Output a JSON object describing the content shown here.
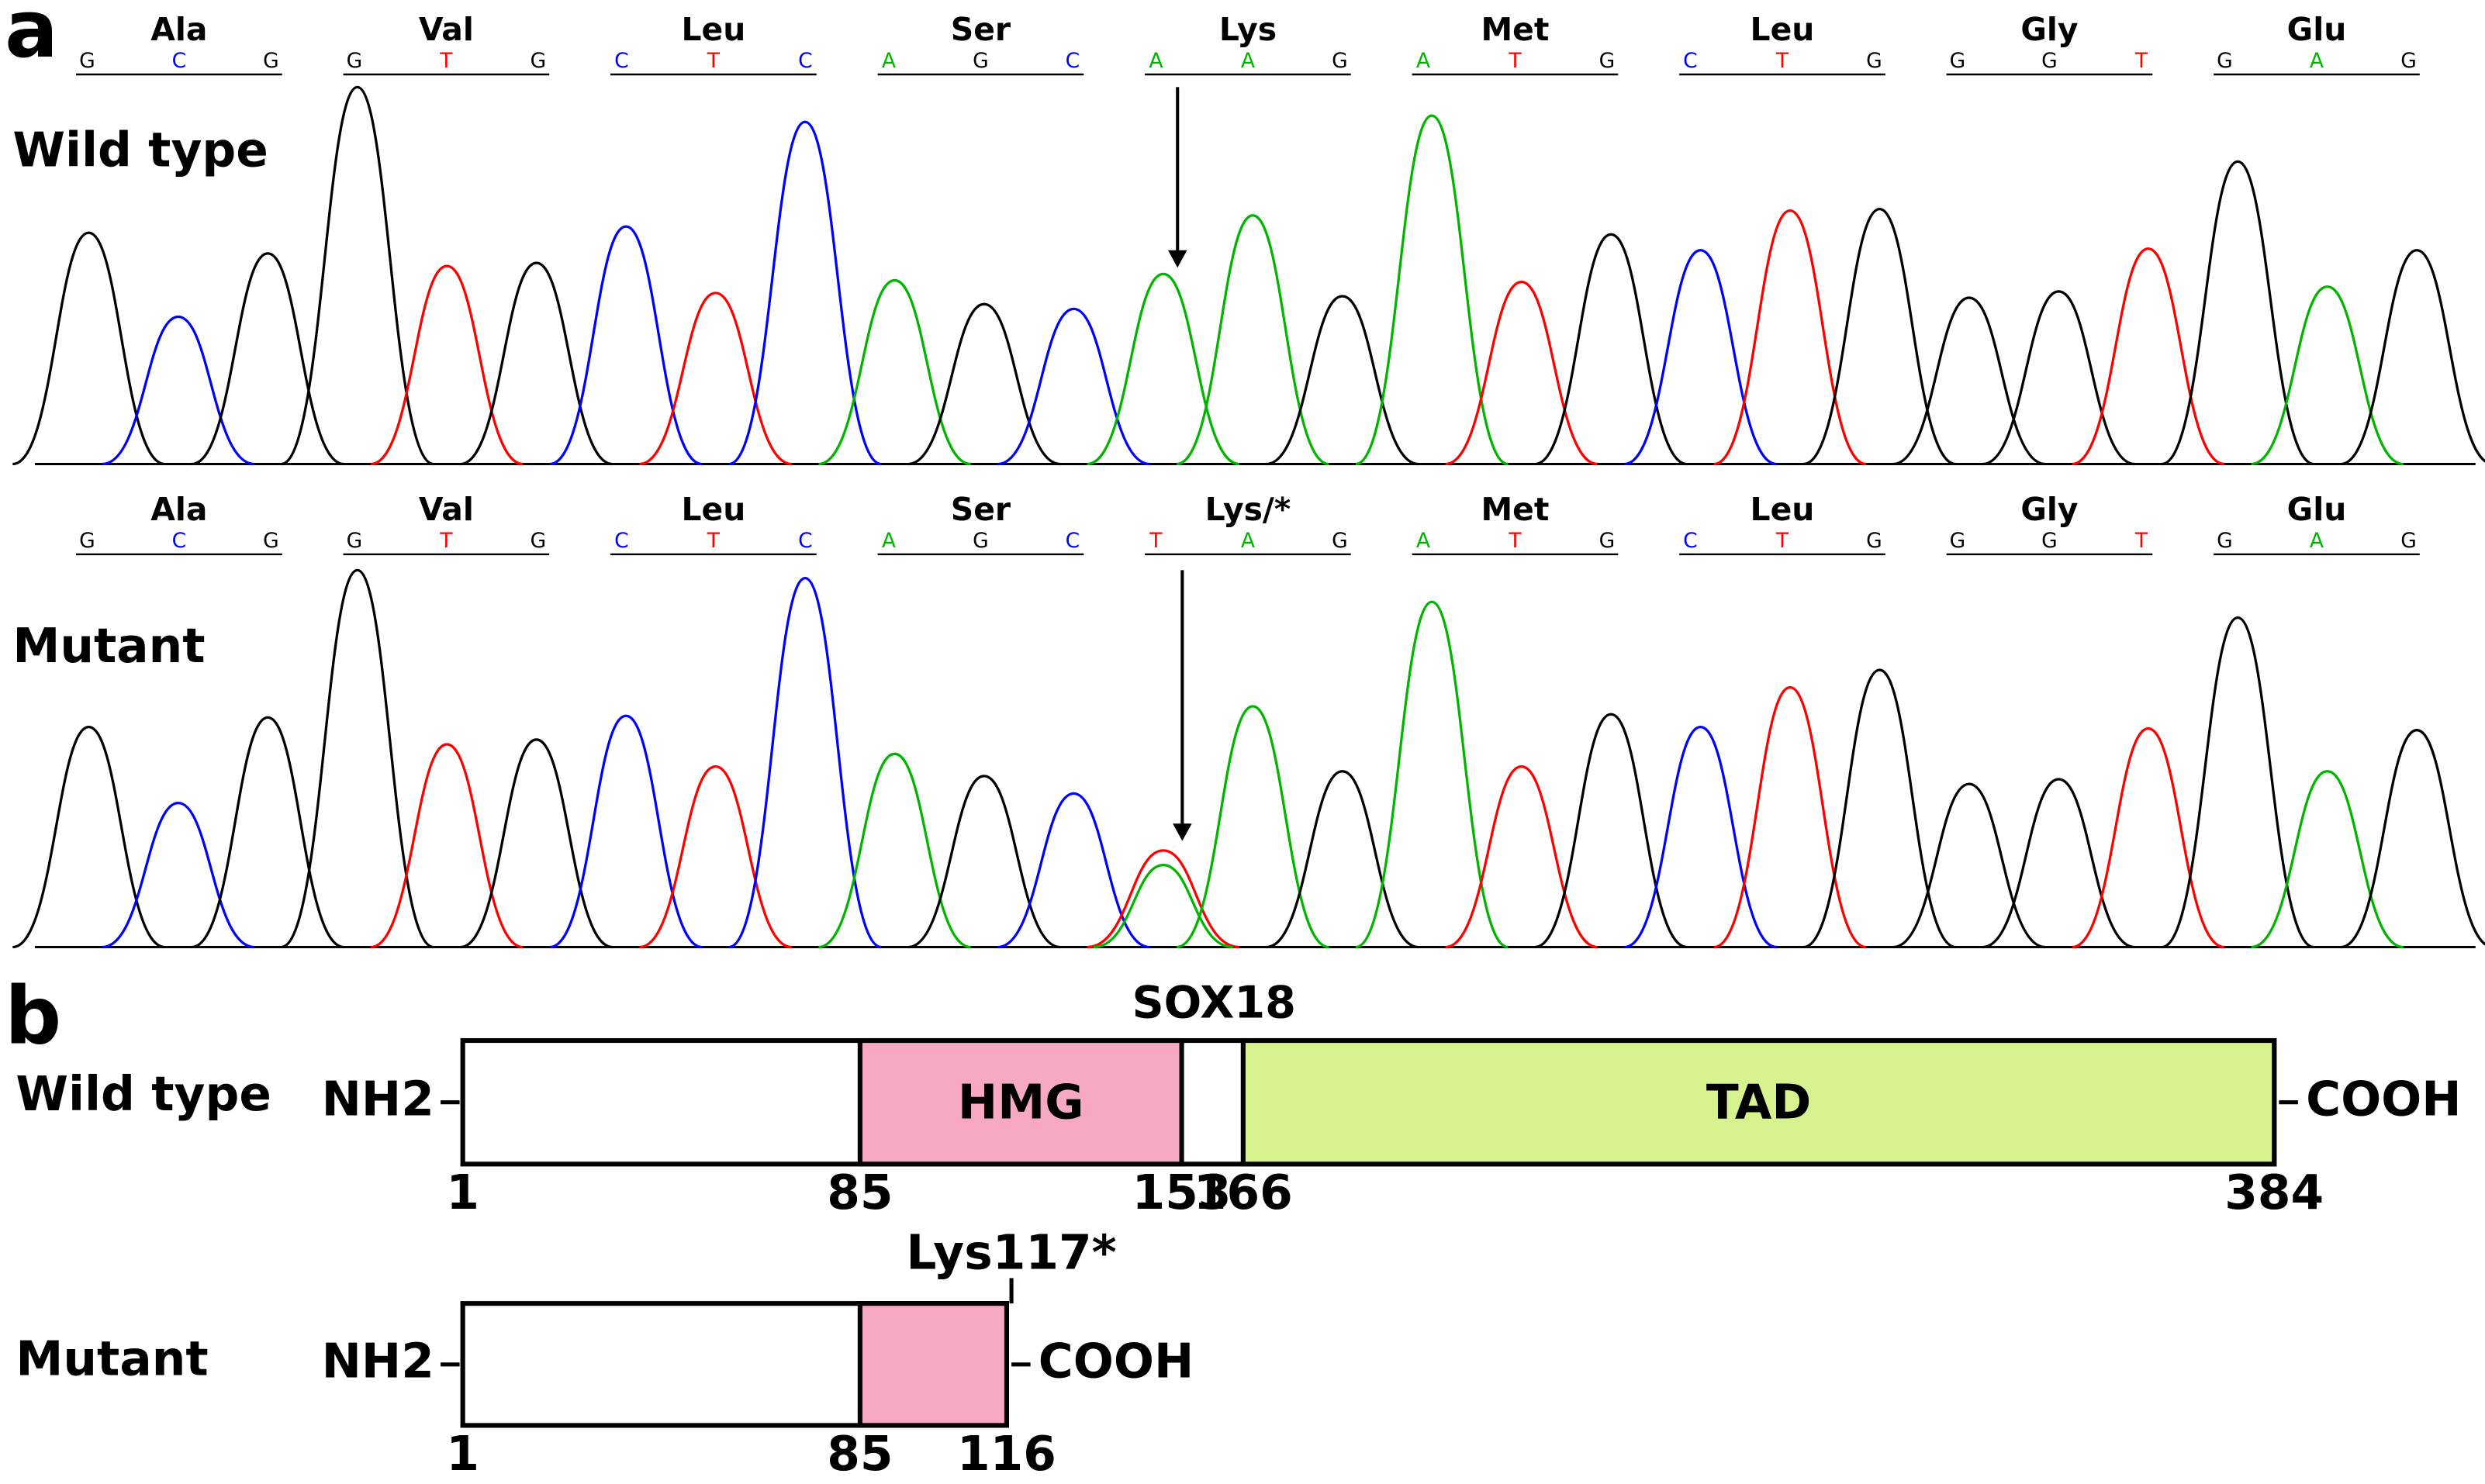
{
  "panel_a": {
    "label": "a",
    "base_colors": {
      "A": "#00b400",
      "C": "#0000ff",
      "G": "#000000",
      "T": "#ff0000"
    },
    "tracks": [
      {
        "label": "Wild type",
        "codons": [
          {
            "amino_acid": "Ala",
            "bases": [
              "G",
              "C",
              "G"
            ]
          },
          {
            "amino_acid": "Val",
            "bases": [
              "G",
              "T",
              "G"
            ]
          },
          {
            "amino_acid": "Leu",
            "bases": [
              "C",
              "T",
              "C"
            ]
          },
          {
            "amino_acid": "Ser",
            "bases": [
              "A",
              "G",
              "C"
            ]
          },
          {
            "amino_acid": "Lys",
            "bases": [
              "A",
              "A",
              "G"
            ]
          },
          {
            "amino_acid": "Met",
            "bases": [
              "A",
              "T",
              "G"
            ]
          },
          {
            "amino_acid": "Leu",
            "bases": [
              "C",
              "T",
              "G"
            ]
          },
          {
            "amino_acid": "Gly",
            "bases": [
              "G",
              "G",
              "T"
            ]
          },
          {
            "amino_acid": "Glu",
            "bases": [
              "G",
              "A",
              "G"
            ]
          }
        ]
      },
      {
        "label": "Mutant",
        "codons": [
          {
            "amino_acid": "Ala",
            "bases": [
              "G",
              "C",
              "G"
            ]
          },
          {
            "amino_acid": "Val",
            "bases": [
              "G",
              "T",
              "G"
            ]
          },
          {
            "amino_acid": "Leu",
            "bases": [
              "C",
              "T",
              "C"
            ]
          },
          {
            "amino_acid": "Ser",
            "bases": [
              "A",
              "G",
              "C"
            ]
          },
          {
            "amino_acid": "Lys/*",
            "bases": [
              "T",
              "A",
              "G"
            ]
          },
          {
            "amino_acid": "Met",
            "bases": [
              "A",
              "T",
              "G"
            ]
          },
          {
            "amino_acid": "Leu",
            "bases": [
              "C",
              "T",
              "G"
            ]
          },
          {
            "amino_acid": "Gly",
            "bases": [
              "G",
              "G",
              "T"
            ]
          },
          {
            "amino_acid": "Glu",
            "bases": [
              "G",
              "A",
              "G"
            ]
          }
        ]
      }
    ]
  },
  "panel_b": {
    "label": "b",
    "protein": "SOX18",
    "constructs": [
      {
        "label": "Wild type",
        "n_term": "NH2",
        "c_term": "COOH",
        "positions": [
          1,
          85,
          153,
          166,
          384
        ],
        "domains": [
          {
            "name": "HMG",
            "start": 85,
            "end": 153,
            "color": "#f7a8c4"
          },
          {
            "name": "TAD",
            "start": 166,
            "end": 384,
            "color": "#d6f38f"
          }
        ]
      },
      {
        "label": "Mutant",
        "n_term": "NH2",
        "c_term": "COOH",
        "positions": [
          1,
          85,
          116
        ],
        "annotation": "Lys117*",
        "domains": [
          {
            "start": 85,
            "end": 116,
            "color": "#f7a8c4"
          }
        ]
      }
    ]
  }
}
